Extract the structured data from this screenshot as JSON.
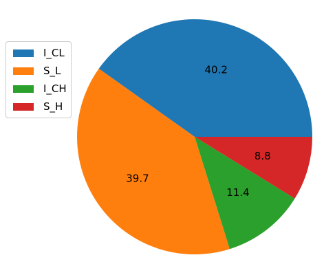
{
  "chart_data": {
    "type": "pie",
    "categories": [
      "I_CL",
      "S_L",
      "I_CH",
      "S_H"
    ],
    "values": [
      40.2,
      39.7,
      11.4,
      8.8
    ],
    "labels": [
      "40.2",
      "39.7",
      "11.4",
      "8.8"
    ],
    "colors": [
      "#1f77b4",
      "#ff7f0e",
      "#2ca02c",
      "#d62728"
    ],
    "start_angle": "0 degrees (3 o'clock), counterclockwise",
    "legend_position": "left",
    "title": ""
  }
}
